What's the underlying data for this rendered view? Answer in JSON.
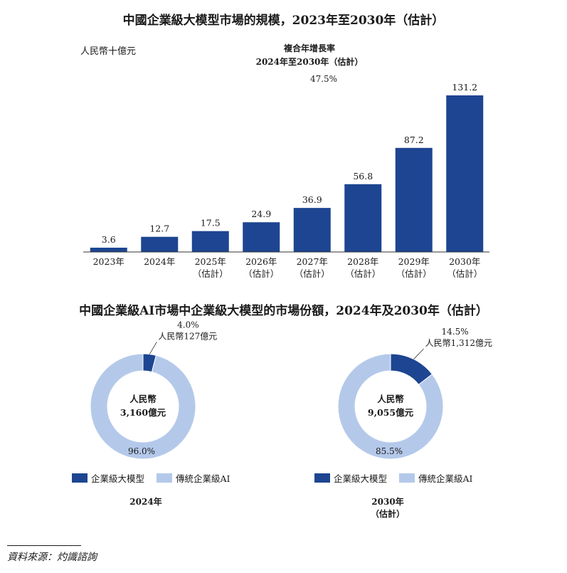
{
  "chart_data": [
    {
      "type": "bar",
      "title": "中國企業級大模型市場的規模，2023年至2030年（估計）",
      "unit_label": "人民幣十億元",
      "categories": [
        "2023年",
        "2024年",
        "2025年",
        "2026年",
        "2027年",
        "2028年",
        "2029年",
        "2030年"
      ],
      "category_sublabels": [
        "",
        "",
        "（估計）",
        "（估計）",
        "（估計）",
        "（估計）",
        "（估計）",
        "（估計）"
      ],
      "values": [
        3.6,
        12.7,
        17.5,
        24.9,
        36.9,
        56.8,
        87.2,
        131.2
      ],
      "value_labels": [
        "3.6",
        "12.7",
        "17.5",
        "24.9",
        "36.9",
        "56.8",
        "87.2",
        "131.2"
      ],
      "ylim": [
        0,
        131.2
      ],
      "color": "#1d4591",
      "cagr": {
        "label_line1": "複合年增長率",
        "label_line2": "2024年至2030年（估計）",
        "value": "47.5%"
      }
    },
    {
      "type": "pie",
      "subtype": "donut",
      "title": "中國企業級AI市場中企業級大模型的市場份額，2024年及2030年（估計）",
      "charts": [
        {
          "year_label": "2024年",
          "year_sublabel": "",
          "center_line1": "人民幣",
          "center_line2": "3,160億元",
          "slices": [
            {
              "name": "企業級大模型",
              "value": 4.0,
              "pct_label": "4.0%",
              "amount_label": "人民幣127億元",
              "color": "#1d4591"
            },
            {
              "name": "傳統企業級AI",
              "value": 96.0,
              "pct_label": "96.0%",
              "color": "#b4c9ea"
            }
          ]
        },
        {
          "year_label": "2030年",
          "year_sublabel": "（估計）",
          "center_line1": "人民幣",
          "center_line2": "9,055億元",
          "slices": [
            {
              "name": "企業級大模型",
              "value": 14.5,
              "pct_label": "14.5%",
              "amount_label": "人民幣1,312億元",
              "color": "#1d4591"
            },
            {
              "name": "傳統企業級AI",
              "value": 85.5,
              "pct_label": "85.5%",
              "color": "#b4c9ea"
            }
          ]
        }
      ],
      "legend": [
        "企業級大模型",
        "傳統企業級AI"
      ]
    }
  ],
  "source": "資料來源：灼識諮詢"
}
